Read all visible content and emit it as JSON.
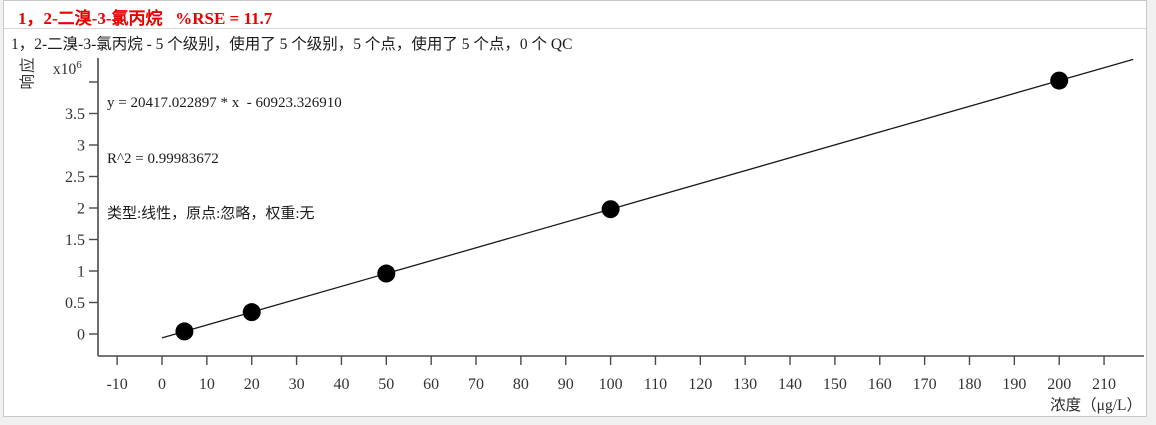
{
  "header": {
    "title": "1，2-二溴-3-氯丙烷   %RSE = 11.7",
    "subtitle": "1，2-二溴-3-氯丙烷 - 5 个级别，使用了 5 个级别，5 个点，使用了 5 个点，0 个 QC"
  },
  "equation": {
    "formula": "y = 20417.022897 * x  - 60923.326910",
    "r_squared": "R^2 = 0.99983672",
    "fit_type": "类型:线性，原点:忽略，权重:无"
  },
  "axes": {
    "y_title": "响应",
    "y_multiplier_prefix": "x10",
    "y_multiplier_exp": "6",
    "x_title": "浓度（μg/L）"
  },
  "colors": {
    "title_red": "#e90000",
    "text": "#1c1c1c",
    "axis": "#4a4a4a",
    "point": "#000000",
    "panel_border": "#c8c8c8"
  },
  "chart_data": {
    "type": "scatter",
    "title": "1，2-二溴-3-氯丙烷 calibration curve",
    "xlabel": "浓度（μg/L）",
    "ylabel": "响应",
    "y_unit_multiplier": "x10^6",
    "x": [
      5,
      20,
      50,
      100,
      200
    ],
    "y_e6": [
      0.041,
      0.347,
      0.96,
      1.981,
      4.022
    ],
    "fit": {
      "type": "linear",
      "slope": 20417.022897,
      "intercept": -60923.32691,
      "r2": 0.99983672,
      "origin": "忽略",
      "weight": "无",
      "rse_percent": 11.7
    },
    "levels": 5,
    "levels_used": 5,
    "points": 5,
    "points_used": 5,
    "qc_count": 0,
    "x_ticks": [
      -10,
      0,
      10,
      20,
      30,
      40,
      50,
      60,
      70,
      80,
      90,
      100,
      110,
      120,
      130,
      140,
      150,
      160,
      170,
      180,
      190,
      200,
      210
    ],
    "y_ticks": [
      0,
      0.5,
      1,
      1.5,
      2,
      2.5,
      3,
      3.5,
      4
    ],
    "y_tick_labels": [
      "0",
      "0.5",
      "1",
      "1.5",
      "2",
      "2.5",
      "3",
      "3.5",
      ""
    ],
    "xlim": [
      -14,
      219
    ],
    "ylim_e6": [
      -0.35,
      4.38
    ],
    "grid": false,
    "legend": false
  }
}
